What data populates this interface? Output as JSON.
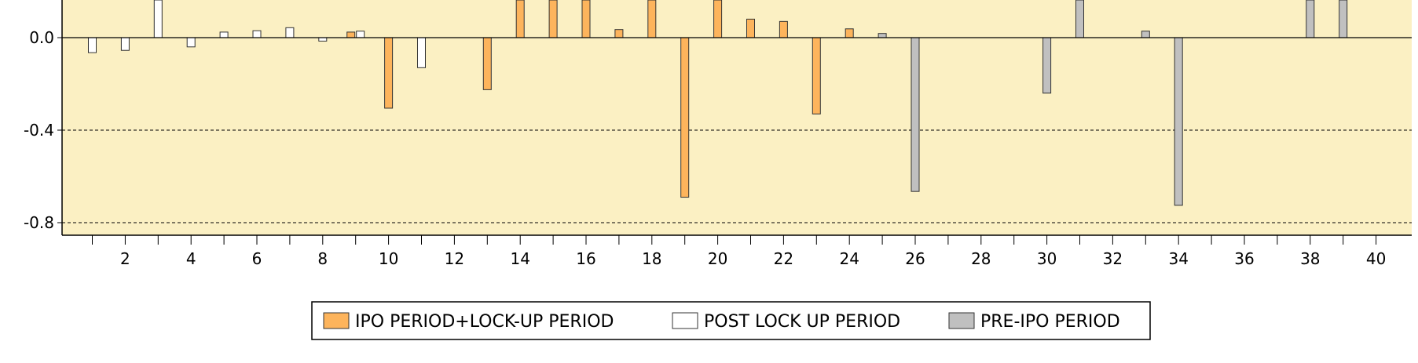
{
  "chart_data": {
    "type": "bar",
    "title": "",
    "xlabel": "",
    "ylabel": "",
    "x_tick_labels": [
      "2",
      "4",
      "6",
      "8",
      "10",
      "12",
      "14",
      "16",
      "18",
      "20",
      "22",
      "24",
      "26",
      "28",
      "30",
      "32",
      "34",
      "36",
      "38",
      "40"
    ],
    "x_ticks": [
      2,
      4,
      6,
      8,
      10,
      12,
      14,
      16,
      18,
      20,
      22,
      24,
      26,
      28,
      30,
      32,
      34,
      36,
      38,
      40
    ],
    "xlim": [
      0,
      41
    ],
    "y_tick_labels": [
      "0.0",
      "-0.4",
      "-0.8"
    ],
    "y_ticks": [
      0.0,
      -0.4,
      -0.8
    ],
    "ylim": [
      -0.845,
      0.165
    ],
    "grid": "dashed horizontal at -0.4 and -0.8",
    "legend_position": "bottom-center",
    "series": [
      {
        "name": "IPO PERIOD+LOCK-UP PERIOD",
        "color": "#FDB45C",
        "points": [
          {
            "x": 9,
            "y": 0.024
          },
          {
            "x": 10,
            "y": -0.305
          },
          {
            "x": 13,
            "y": -0.225
          },
          {
            "x": 14,
            "y": 0.2
          },
          {
            "x": 15,
            "y": 0.2
          },
          {
            "x": 16,
            "y": 0.2
          },
          {
            "x": 17,
            "y": 0.035
          },
          {
            "x": 18,
            "y": 0.2
          },
          {
            "x": 19,
            "y": -0.69
          },
          {
            "x": 20,
            "y": 0.165
          },
          {
            "x": 21,
            "y": 0.08
          },
          {
            "x": 22,
            "y": 0.07
          },
          {
            "x": 23,
            "y": -0.33
          },
          {
            "x": 24,
            "y": 0.038
          }
        ]
      },
      {
        "name": "POST LOCK UP PERIOD",
        "color": "#FFFFFF",
        "points": [
          {
            "x": 1,
            "y": -0.065
          },
          {
            "x": 2,
            "y": -0.055
          },
          {
            "x": 3,
            "y": 0.2
          },
          {
            "x": 4,
            "y": -0.04
          },
          {
            "x": 5,
            "y": 0.024
          },
          {
            "x": 6,
            "y": 0.03
          },
          {
            "x": 7,
            "y": 0.043
          },
          {
            "x": 8,
            "y": -0.015
          },
          {
            "x": 9,
            "y": 0.028
          },
          {
            "x": 11,
            "y": -0.13
          }
        ]
      },
      {
        "name": "PRE-IPO PERIOD",
        "color": "#C0C0C0",
        "points": [
          {
            "x": 25,
            "y": 0.018
          },
          {
            "x": 26,
            "y": -0.665
          },
          {
            "x": 30,
            "y": -0.24
          },
          {
            "x": 31,
            "y": 0.2
          },
          {
            "x": 33,
            "y": 0.028
          },
          {
            "x": 34,
            "y": -0.725
          },
          {
            "x": 38,
            "y": 0.2
          },
          {
            "x": 39,
            "y": 0.2
          }
        ]
      }
    ]
  }
}
